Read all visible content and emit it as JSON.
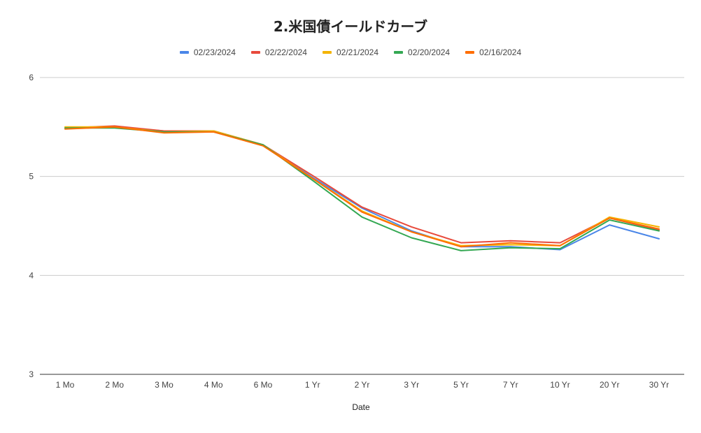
{
  "chart_data": {
    "type": "line",
    "title": "2.米国債イールドカーブ",
    "xlabel": "Date",
    "ylabel": "",
    "ylim": [
      3,
      6
    ],
    "yticks": [
      3,
      4,
      5,
      6
    ],
    "grid": true,
    "legend_position": "top",
    "categories": [
      "1 Mo",
      "2 Mo",
      "3 Mo",
      "4 Mo",
      "6 Mo",
      "1 Yr",
      "2 Yr",
      "3 Yr",
      "5 Yr",
      "7 Yr",
      "10 Yr",
      "20 Yr",
      "30 Yr"
    ],
    "series": [
      {
        "name": "02/23/2024",
        "color": "#4a86e8",
        "values": [
          5.49,
          5.5,
          5.46,
          5.46,
          5.32,
          4.99,
          4.68,
          4.45,
          4.29,
          4.29,
          4.26,
          4.51,
          4.37
        ]
      },
      {
        "name": "02/22/2024",
        "color": "#e84a3c",
        "values": [
          5.49,
          5.51,
          5.46,
          5.46,
          5.32,
          5.01,
          4.69,
          4.49,
          4.33,
          4.35,
          4.33,
          4.58,
          4.46
        ]
      },
      {
        "name": "02/21/2024",
        "color": "#f4b400",
        "values": [
          5.5,
          5.5,
          5.45,
          5.46,
          5.32,
          4.98,
          4.65,
          4.44,
          4.3,
          4.31,
          4.3,
          4.59,
          4.49
        ]
      },
      {
        "name": "02/20/2024",
        "color": "#34a853",
        "values": [
          5.49,
          5.49,
          5.45,
          5.45,
          5.32,
          4.96,
          4.59,
          4.38,
          4.25,
          4.28,
          4.27,
          4.56,
          4.45
        ]
      },
      {
        "name": "02/16/2024",
        "color": "#ff6d00",
        "values": [
          5.48,
          5.5,
          5.44,
          5.45,
          5.31,
          4.98,
          4.64,
          4.44,
          4.29,
          4.33,
          4.3,
          4.58,
          4.47
        ]
      }
    ]
  }
}
